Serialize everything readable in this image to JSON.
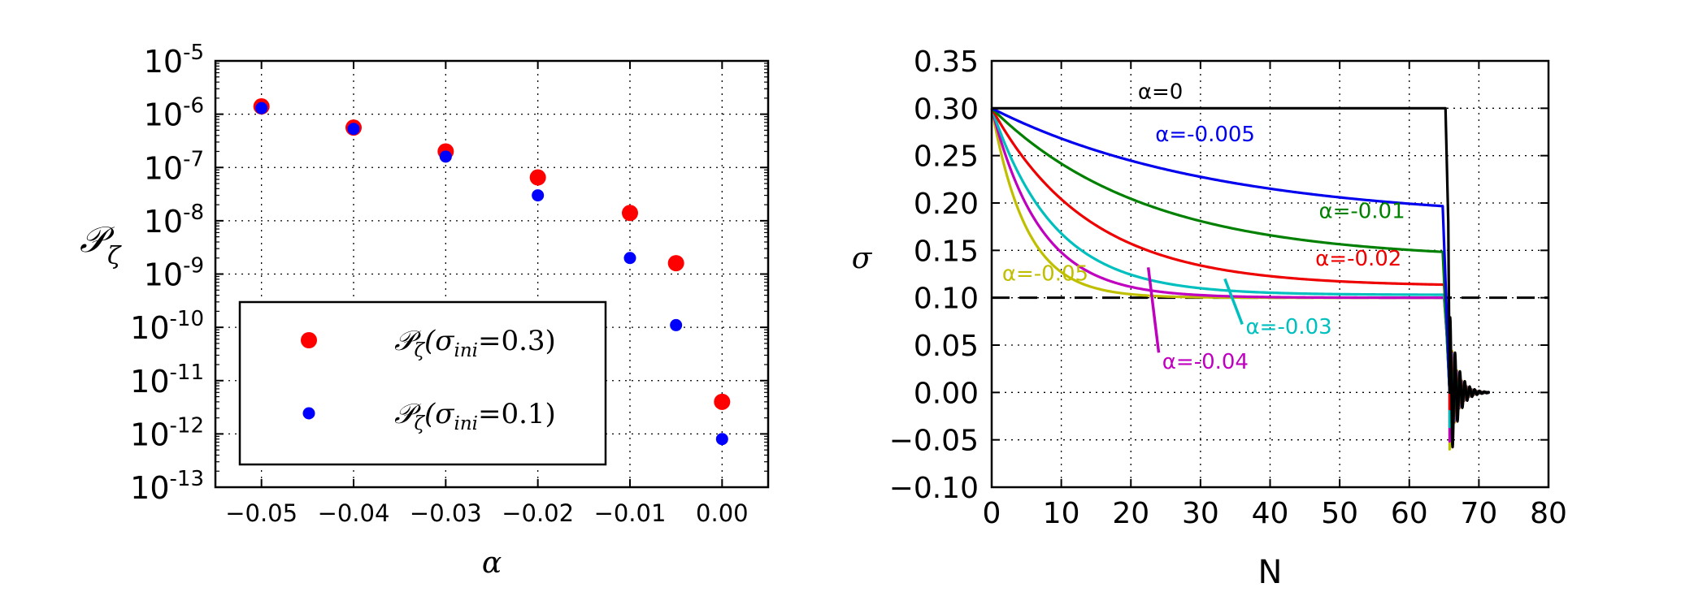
{
  "chart_data": [
    {
      "type": "scatter",
      "title": "",
      "xlabel": "α",
      "ylabel_main": "𝒫",
      "ylabel_sub": "ζ",
      "yscale": "log",
      "xlim": [
        -0.055,
        0.005
      ],
      "ylim_exp": [
        -13,
        -5
      ],
      "xticks": [
        -0.05,
        -0.04,
        -0.03,
        -0.02,
        -0.01,
        0.0
      ],
      "xtick_labels": [
        "−0.05",
        "−0.04",
        "−0.03",
        "−0.02",
        "−0.01",
        "0.00"
      ],
      "ytick_exps": [
        -13,
        -12,
        -11,
        -10,
        -9,
        -8,
        -7,
        -6,
        -5
      ],
      "ytick_base": "10",
      "grid": true,
      "legend_position": "lower-left",
      "series": [
        {
          "name": "P_zeta(sigma_ini=0.3)",
          "legend_prefix": "𝒫",
          "legend_sub": "ζ",
          "legend_arg": "(σ",
          "legend_arg_sub": "ini",
          "legend_val": "=0.3)",
          "color": "#ff0000",
          "marker_size": "large",
          "x": [
            -0.05,
            -0.04,
            -0.03,
            -0.02,
            -0.01,
            -0.005,
            0.0
          ],
          "y": [
            1.4e-06,
            5.6e-07,
            2e-07,
            6.5e-08,
            1.4e-08,
            1.6e-09,
            4e-12
          ]
        },
        {
          "name": "P_zeta(sigma_ini=0.1)",
          "legend_prefix": "𝒫",
          "legend_sub": "ζ",
          "legend_arg": "(σ",
          "legend_arg_sub": "ini",
          "legend_val": "=0.1)",
          "color": "#0000ff",
          "marker_size": "small",
          "x": [
            -0.05,
            -0.04,
            -0.03,
            -0.02,
            -0.01,
            -0.005,
            0.0
          ],
          "y": [
            1.3e-06,
            5.3e-07,
            1.6e-07,
            3e-08,
            2e-09,
            1.1e-10,
            8e-13
          ]
        }
      ]
    },
    {
      "type": "line",
      "title": "",
      "xlabel": "N",
      "ylabel": "σ",
      "xlim": [
        0,
        80
      ],
      "ylim": [
        -0.1,
        0.35
      ],
      "xticks": [
        0,
        10,
        20,
        30,
        40,
        50,
        60,
        70,
        80
      ],
      "xtick_labels": [
        "0",
        "10",
        "20",
        "30",
        "40",
        "50",
        "60",
        "70",
        "80"
      ],
      "yticks": [
        -0.1,
        -0.05,
        0.0,
        0.05,
        0.1,
        0.15,
        0.2,
        0.25,
        0.3,
        0.35
      ],
      "ytick_labels": [
        "−0.10",
        "−0.05",
        "0.00",
        "0.05",
        "0.10",
        "0.15",
        "0.20",
        "0.25",
        "0.30",
        "0.35"
      ],
      "grid": true,
      "reference_line": {
        "y": 0.1,
        "style": "dashed",
        "color": "#000000"
      },
      "series": [
        {
          "name": "α=0",
          "alpha": 0,
          "color": "#000000",
          "end_value": 0.3,
          "tau": 1000,
          "end_N": 65.2,
          "label": "α=0",
          "label_at": [
            21,
            0.31
          ],
          "label_anchor": "start"
        },
        {
          "name": "α=-0.005",
          "alpha": -0.005,
          "color": "#0000ee",
          "end_value": 0.181,
          "tau": 32,
          "end_N": 64.8,
          "label": "α=-0.005",
          "label_at": [
            23.5,
            0.265
          ],
          "label_anchor": "start"
        },
        {
          "name": "α=-0.01",
          "alpha": -0.01,
          "color": "#008000",
          "end_value": 0.14,
          "tau": 22,
          "end_N": 64.8,
          "label": "α=-0.01",
          "label_at": [
            47,
            0.184
          ],
          "label_anchor": "start"
        },
        {
          "name": "α=-0.02",
          "alpha": -0.02,
          "color": "#ee0000",
          "end_value": 0.112,
          "tau": 14,
          "end_N": 65.0,
          "label": "α=-0.02",
          "label_at": [
            46.5,
            0.134
          ],
          "label_anchor": "start"
        },
        {
          "name": "α=-0.03",
          "alpha": -0.03,
          "color": "#00bfbf",
          "end_value": 0.103,
          "tau": 9,
          "end_N": 65.0,
          "label": "α=-0.03",
          "label_at": [
            36.5,
            0.062
          ],
          "label_anchor": "start",
          "leader_from": [
            33.5,
            0.12
          ],
          "leader_to": [
            36,
            0.072
          ]
        },
        {
          "name": "α=-0.04",
          "alpha": -0.04,
          "color": "#bf00bf",
          "end_value": 0.1,
          "tau": 7,
          "end_N": 65.0,
          "label": "α=-0.04",
          "label_at": [
            24.5,
            0.025
          ],
          "label_anchor": "start",
          "leader_from": [
            22.5,
            0.132
          ],
          "leader_to": [
            24,
            0.042
          ]
        },
        {
          "name": "α=-0.05",
          "alpha": -0.05,
          "color": "#bfbf00",
          "end_value": 0.1,
          "tau": 5,
          "end_N": 65.0,
          "label": "α=-0.05",
          "label_at": [
            1.5,
            0.118
          ],
          "label_anchor": "start"
        }
      ]
    }
  ]
}
